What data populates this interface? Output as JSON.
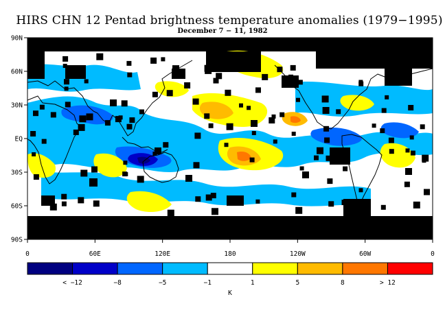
{
  "figure": {
    "title": "HIRS CHN 12 Pentad brightness temperature anomalies (1979−1995)",
    "subtitle": "December 7 − 11, 1982"
  },
  "map": {
    "projection": "equirectangular",
    "lon_range": [
      0,
      360
    ],
    "lat_range": [
      -90,
      90
    ],
    "lat_ticks": [
      {
        "lat": 90,
        "label": "90N"
      },
      {
        "lat": 60,
        "label": "60N"
      },
      {
        "lat": 30,
        "label": "30N"
      },
      {
        "lat": 0,
        "label": "EQ"
      },
      {
        "lat": -30,
        "label": "30S"
      },
      {
        "lat": -60,
        "label": "60S"
      },
      {
        "lat": -90,
        "label": "90S"
      }
    ],
    "lon_ticks": [
      {
        "lon": 0,
        "label": "0"
      },
      {
        "lon": 60,
        "label": "60E"
      },
      {
        "lon": 120,
        "label": "120E"
      },
      {
        "lon": 180,
        "label": "180"
      },
      {
        "lon": 240,
        "label": "120W"
      },
      {
        "lon": 300,
        "label": "60W"
      },
      {
        "lon": 360,
        "label": "0"
      }
    ]
  },
  "colorbar": {
    "units": "K",
    "missing_color": "#000000",
    "bins": [
      {
        "color": "#000080"
      },
      {
        "color": "#0000c8"
      },
      {
        "color": "#0066ff"
      },
      {
        "color": "#00bbff"
      },
      {
        "color": "#ffffff"
      },
      {
        "color": "#ffff00"
      },
      {
        "color": "#ffbb00"
      },
      {
        "color": "#ff7700"
      },
      {
        "color": "#ff0000"
      }
    ],
    "labels": [
      "< −12",
      "−8",
      "−5",
      "−1",
      "1",
      "5",
      "8",
      "> 12"
    ]
  },
  "chart_data": {
    "type": "heatmap",
    "title": "HIRS CHN 12 Pentad brightness temperature anomalies (1979−1995)",
    "subtitle": "December 7 − 11, 1982",
    "units": "K",
    "x_range": [
      0,
      360
    ],
    "y_range": [
      -90,
      90
    ],
    "regions": [
      {
        "lon": [
          0,
          360
        ],
        "lat": [
          75,
          90
        ],
        "class": "missing"
      },
      {
        "lon": [
          0,
          360
        ],
        "lat": [
          -90,
          -70
        ],
        "class": "missing"
      },
      {
        "lon": [
          160,
          230
        ],
        "lat": [
          45,
          60
        ],
        "class": "missing"
      },
      {
        "lon": [
          0,
          15
        ],
        "lat": [
          60,
          75
        ],
        "class": "missing"
      },
      {
        "lon": [
          65,
          95
        ],
        "lat": [
          45,
          60
        ],
        "class": "missing"
      },
      {
        "lon": [
          40,
          60
        ],
        "lat": [
          20,
          35
        ],
        "class": "missing"
      },
      {
        "lon": [
          300,
          330
        ],
        "lat": [
          -70,
          -58
        ],
        "class": "missing"
      },
      {
        "lon": [
          0,
          360
        ],
        "lat": [
          -20,
          20
        ],
        "class": "-5 to -1"
      },
      {
        "lon": [
          0,
          120
        ],
        "lat": [
          10,
          35
        ],
        "class": "-5 to -1"
      },
      {
        "lon": [
          50,
          85
        ],
        "lat": [
          15,
          25
        ],
        "class": "-8 to -5"
      },
      {
        "lon": [
          110,
          130
        ],
        "lat": [
          -25,
          -15
        ],
        "class": "< -12"
      },
      {
        "lon": [
          100,
          135
        ],
        "lat": [
          -25,
          -10
        ],
        "class": "-12 to -8"
      },
      {
        "lon": [
          190,
          205
        ],
        "lat": [
          20,
          30
        ],
        "class": "8 to 12"
      },
      {
        "lon": [
          185,
          215
        ],
        "lat": [
          15,
          35
        ],
        "class": "5 to 8"
      },
      {
        "lon": [
          210,
          230
        ],
        "lat": [
          -20,
          -5
        ],
        "class": "8 to 12"
      },
      {
        "lon": [
          200,
          240
        ],
        "lat": [
          -25,
          -5
        ],
        "class": "5 to 8"
      },
      {
        "lon": [
          195,
          225
        ],
        "lat": [
          45,
          70
        ],
        "class": "1 to 5"
      },
      {
        "lon": [
          0,
          40
        ],
        "lat": [
          -30,
          -15
        ],
        "class": "1 to 5"
      },
      {
        "lon": [
          55,
          110
        ],
        "lat": [
          -65,
          -35
        ],
        "class": "1 to 5"
      }
    ]
  }
}
